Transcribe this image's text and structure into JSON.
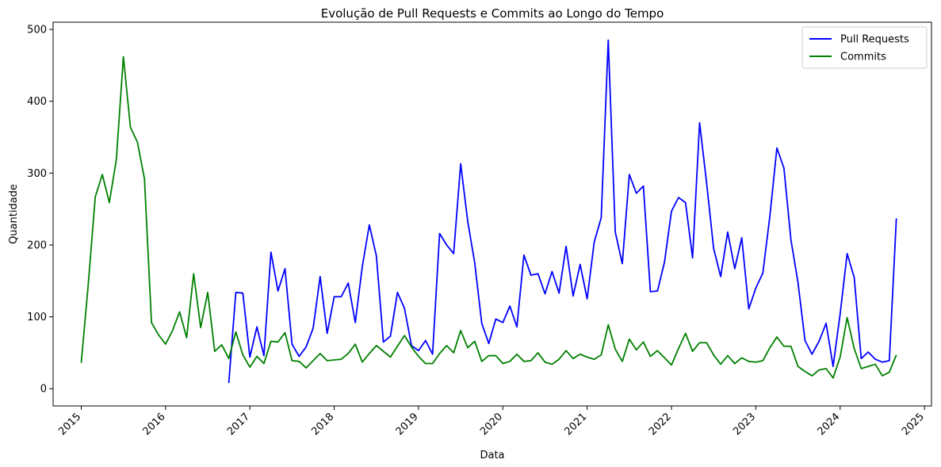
{
  "chart_data": {
    "type": "line",
    "title": "Evolução de Pull Requests e Commits ao Longo do Tempo",
    "xlabel": "Data",
    "ylabel": "Quantidade",
    "x_ticks": [
      "2015",
      "2016",
      "2017",
      "2018",
      "2019",
      "2020",
      "2021",
      "2022",
      "2023",
      "2024",
      "2025"
    ],
    "y_ticks": [
      0,
      100,
      200,
      300,
      400,
      500
    ],
    "xlim": [
      "2014-09",
      "2025-02"
    ],
    "ylim": [
      -24,
      510
    ],
    "grid": false,
    "legend_position": "top-right",
    "series": [
      {
        "name": "Pull Requests",
        "color": "#0000ff",
        "start": "2016-10",
        "values": [
          8,
          134,
          133,
          44,
          86,
          46,
          190,
          136,
          167,
          62,
          45,
          58,
          84,
          156,
          77,
          128,
          128,
          147,
          92,
          170,
          228,
          185,
          65,
          73,
          134,
          112,
          60,
          53,
          67,
          48,
          216,
          200,
          188,
          313,
          233,
          175,
          91,
          63,
          97,
          92,
          115,
          86,
          186,
          158,
          160,
          132,
          163,
          133,
          198,
          129,
          173,
          125,
          204,
          238,
          485,
          218,
          174,
          298,
          272,
          282,
          135,
          136,
          176,
          247,
          266,
          259,
          182,
          370,
          286,
          195,
          156,
          218,
          167,
          210,
          111,
          140,
          161,
          240,
          335,
          307,
          207,
          148,
          67,
          48,
          66,
          91,
          31,
          104,
          188,
          155,
          42,
          51,
          41,
          37,
          39,
          237
        ]
      },
      {
        "name": "Commits",
        "color": "#008000",
        "start": "2015-01",
        "values": [
          36,
          145,
          267,
          298,
          259,
          319,
          462,
          364,
          343,
          292,
          92,
          75,
          62,
          81,
          107,
          71,
          160,
          85,
          134,
          52,
          61,
          42,
          79,
          47,
          30,
          45,
          35,
          66,
          65,
          78,
          39,
          38,
          29,
          39,
          49,
          39,
          40,
          41,
          49,
          62,
          37,
          49,
          60,
          52,
          44,
          59,
          74,
          58,
          45,
          35,
          35,
          49,
          60,
          50,
          81,
          57,
          66,
          38,
          46,
          46,
          35,
          38,
          48,
          38,
          39,
          50,
          37,
          34,
          41,
          53,
          42,
          48,
          44,
          41,
          47,
          89,
          55,
          38,
          69,
          54,
          65,
          45,
          53,
          43,
          33,
          56,
          77,
          52,
          64,
          64,
          47,
          34,
          46,
          35,
          43,
          38,
          37,
          39,
          57,
          72,
          59,
          59,
          31,
          24,
          18,
          26,
          28,
          15,
          44,
          99,
          56,
          28,
          31,
          34,
          18,
          23,
          47
        ]
      }
    ]
  }
}
